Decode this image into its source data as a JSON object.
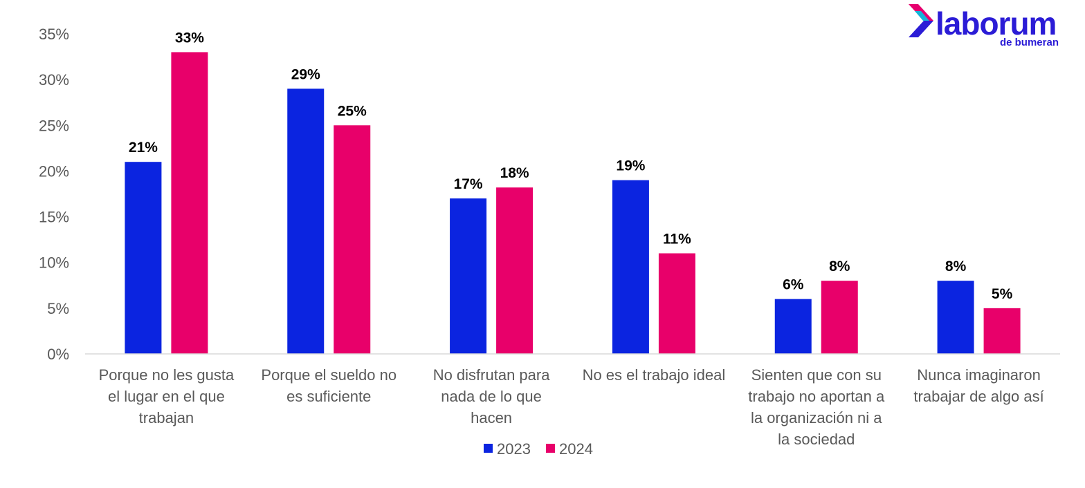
{
  "logo": {
    "brand": "laborum",
    "sub": "de bumeran",
    "colors": {
      "text": "#2b1cd6",
      "sub": "#2b1cd6",
      "icon_top": "#e6006e",
      "icon_bottom": "#2b1cd6",
      "icon_mid": "#14b4d8"
    }
  },
  "chart_data": {
    "type": "bar",
    "categories": [
      [
        "Porque no les gusta",
        "el lugar en el que",
        "trabajan"
      ],
      [
        "Porque el sueldo no",
        "es suficiente"
      ],
      [
        "No disfrutan para",
        "nada de lo que",
        "hacen"
      ],
      [
        "No es el trabajo ideal"
      ],
      [
        "Sienten que con su",
        "trabajo no aportan a",
        "la organización ni a",
        "la sociedad"
      ],
      [
        "Nunca imaginaron",
        "trabajar de algo así"
      ]
    ],
    "series": [
      {
        "name": "2023",
        "color": "#0b24e0",
        "values": [
          21,
          29,
          17,
          19,
          6,
          8
        ],
        "labels": [
          "21%",
          "29%",
          "17%",
          "19%",
          "6%",
          "8%"
        ]
      },
      {
        "name": "2024",
        "color": "#e8006a",
        "values": [
          33,
          25,
          18.2,
          11,
          8,
          5
        ],
        "labels": [
          "33%",
          "25%",
          "18%",
          "11%",
          "8%",
          "5%"
        ]
      }
    ],
    "ylim": [
      0,
      35
    ],
    "yticks": [
      {
        "value": 0,
        "label": "0%"
      },
      {
        "value": 5,
        "label": "5%"
      },
      {
        "value": 10,
        "label": "10%"
      },
      {
        "value": 15,
        "label": "15%"
      },
      {
        "value": 20,
        "label": "20%"
      },
      {
        "value": 25,
        "label": "25%"
      },
      {
        "value": 30,
        "label": "30%"
      },
      {
        "value": 35,
        "label": "35%"
      }
    ],
    "grid": false,
    "legend": "bottom-center",
    "title": "",
    "xlabel": "",
    "ylabel": ""
  }
}
